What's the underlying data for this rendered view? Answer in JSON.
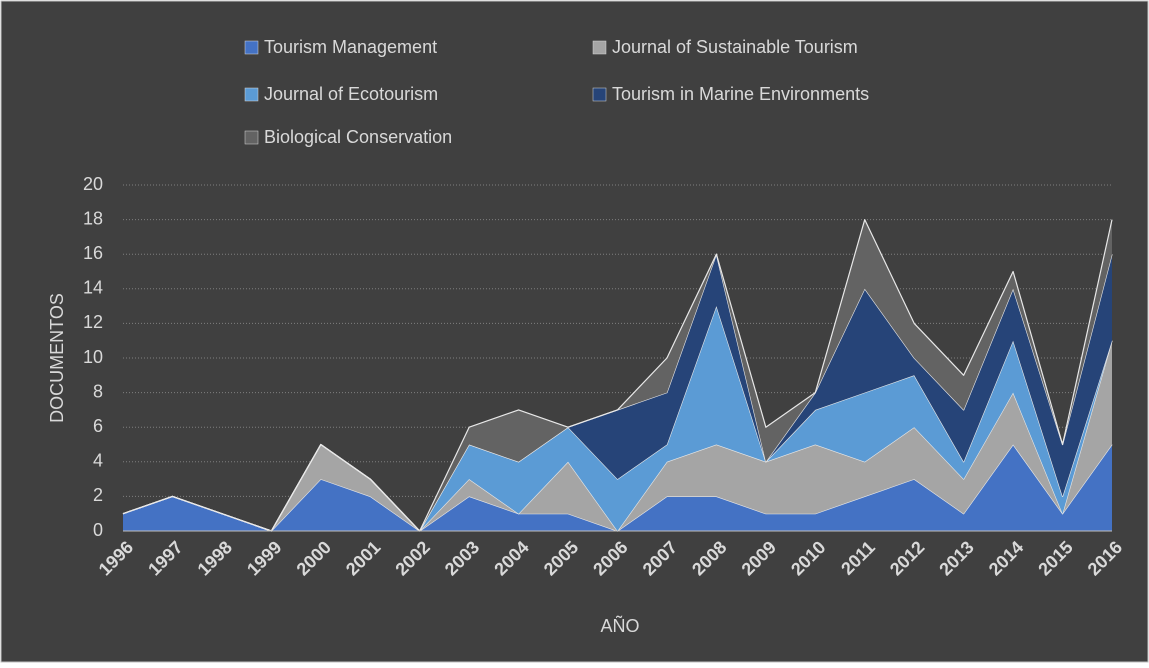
{
  "chart_data": {
    "type": "stacked_area",
    "x_label": "AÑO",
    "y_label": "DOCUMENTOS",
    "categories": [
      "1996",
      "1997",
      "1998",
      "1999",
      "2000",
      "2001",
      "2002",
      "2003",
      "2004",
      "2005",
      "2006",
      "2007",
      "2008",
      "2009",
      "2010",
      "2011",
      "2012",
      "2013",
      "2014",
      "2015",
      "2016"
    ],
    "series": [
      {
        "name": "Tourism Management",
        "color": "#4472c4",
        "values": [
          1,
          2,
          1,
          0,
          3,
          2,
          0,
          2,
          1,
          1,
          0,
          2,
          2,
          1,
          1,
          2,
          3,
          1,
          5,
          1,
          5
        ]
      },
      {
        "name": "Journal of Sustainable Tourism",
        "color": "#a5a5a5",
        "values": [
          0,
          0,
          0,
          0,
          2,
          1,
          0,
          1,
          0,
          3,
          0,
          2,
          3,
          3,
          4,
          2,
          3,
          2,
          3,
          0,
          6
        ]
      },
      {
        "name": "Journal of Ecotourism",
        "color": "#5b9bd5",
        "values": [
          0,
          0,
          0,
          0,
          0,
          0,
          0,
          2,
          3,
          2,
          3,
          1,
          8,
          0,
          2,
          4,
          3,
          1,
          3,
          1,
          0
        ]
      },
      {
        "name": "Tourism in Marine Environments",
        "color": "#264478",
        "values": [
          0,
          0,
          0,
          0,
          0,
          0,
          0,
          0,
          0,
          0,
          4,
          3,
          3,
          0,
          1,
          6,
          1,
          3,
          3,
          3,
          5
        ]
      },
      {
        "name": "Biological Conservation",
        "color": "#636363",
        "values": [
          0,
          0,
          0,
          0,
          0,
          0,
          0,
          1,
          3,
          0,
          0,
          2,
          0,
          2,
          0,
          4,
          2,
          2,
          1,
          0,
          2
        ]
      }
    ],
    "ylim": [
      0,
      20
    ],
    "yticks": [
      0,
      2,
      4,
      6,
      8,
      10,
      12,
      14,
      16,
      18,
      20
    ],
    "grid": true
  }
}
